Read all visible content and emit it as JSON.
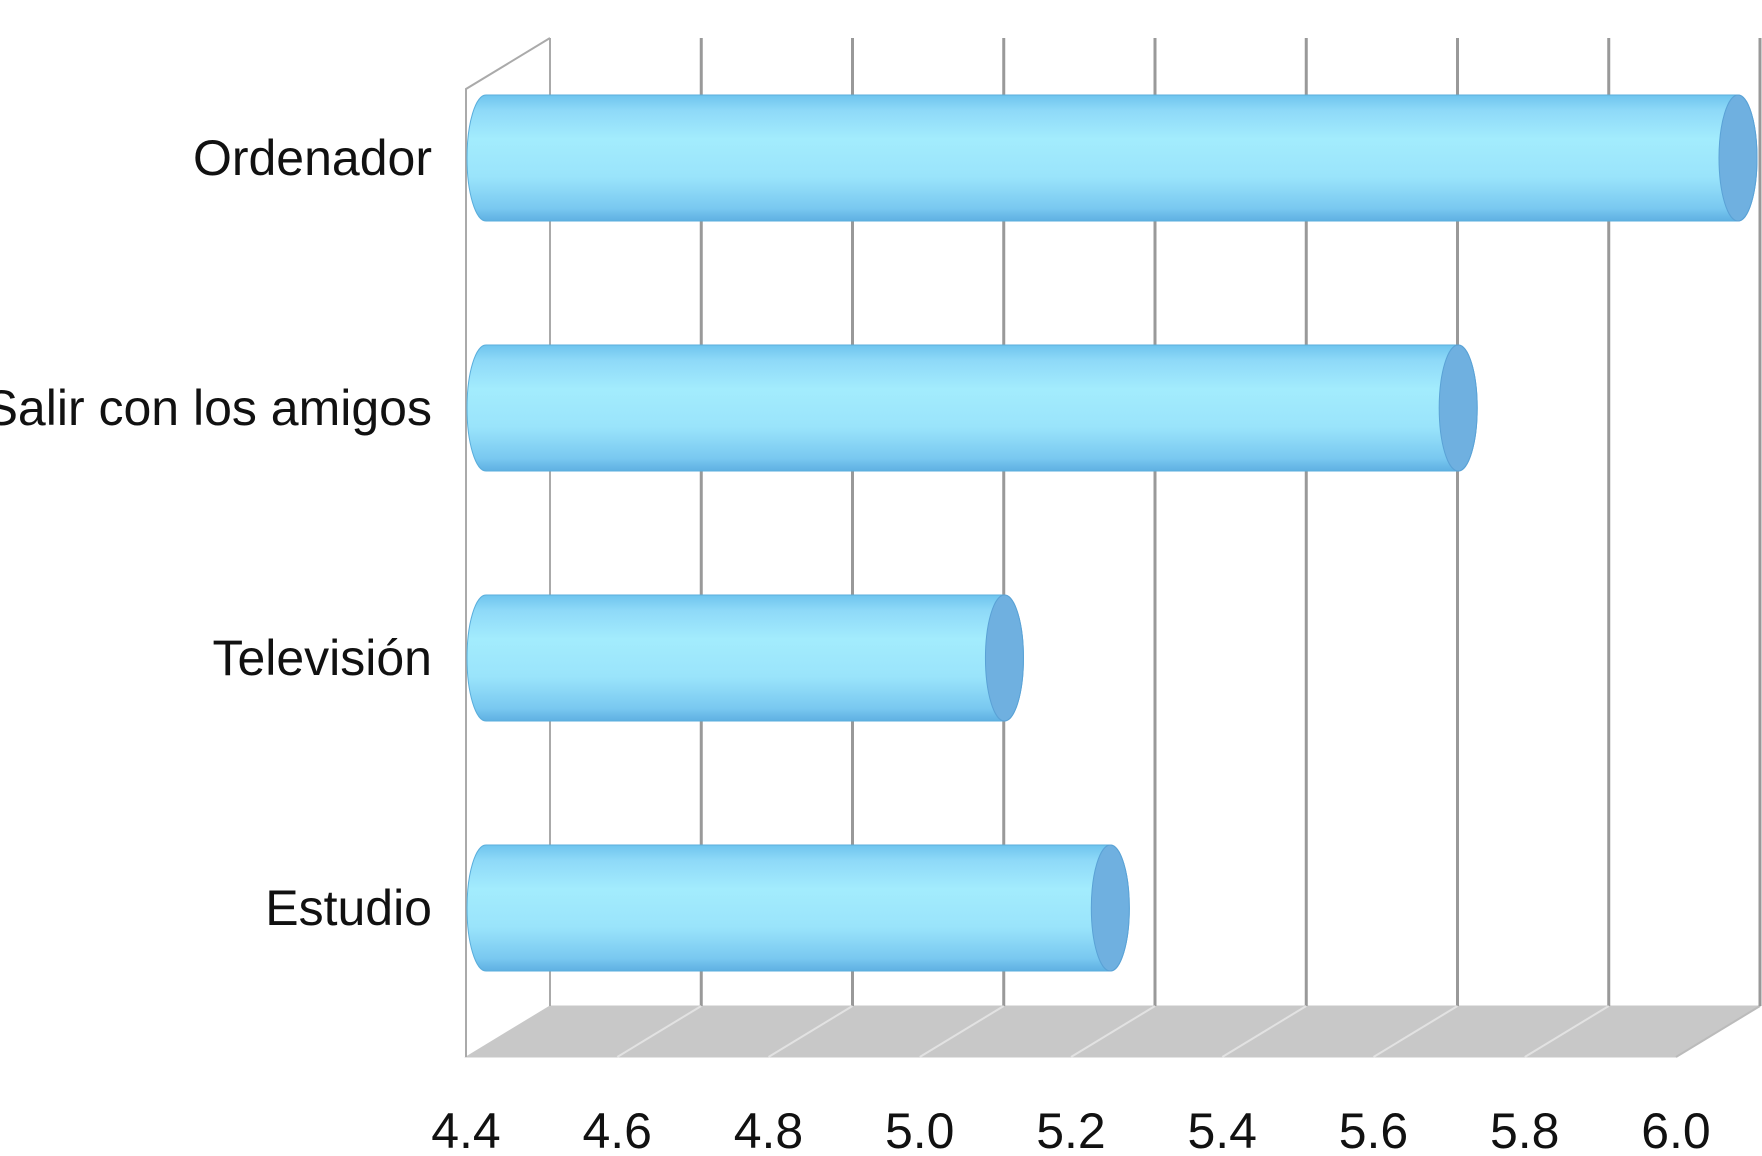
{
  "chart_data": {
    "type": "bar",
    "orientation": "horizontal",
    "style": "3d-cylinder",
    "categories": [
      "Ordenador",
      "Salir con los amigos",
      "Televisión",
      "Estudio"
    ],
    "values": [
      6.0,
      5.63,
      5.03,
      5.17
    ],
    "xlim": [
      4.4,
      6.0
    ],
    "xticks": [
      "4.4",
      "4.6",
      "4.8",
      "5.0",
      "5.2",
      "5.4",
      "5.6",
      "5.8",
      "6.0"
    ],
    "title": "",
    "xlabel": "",
    "ylabel": "",
    "grid": "vertical",
    "legend": "none",
    "colors": {
      "bar_body": "#8fdcf8",
      "bar_cap": "#6fb0e0",
      "gridline": "#999999",
      "floor": "#c8c8c8"
    }
  }
}
